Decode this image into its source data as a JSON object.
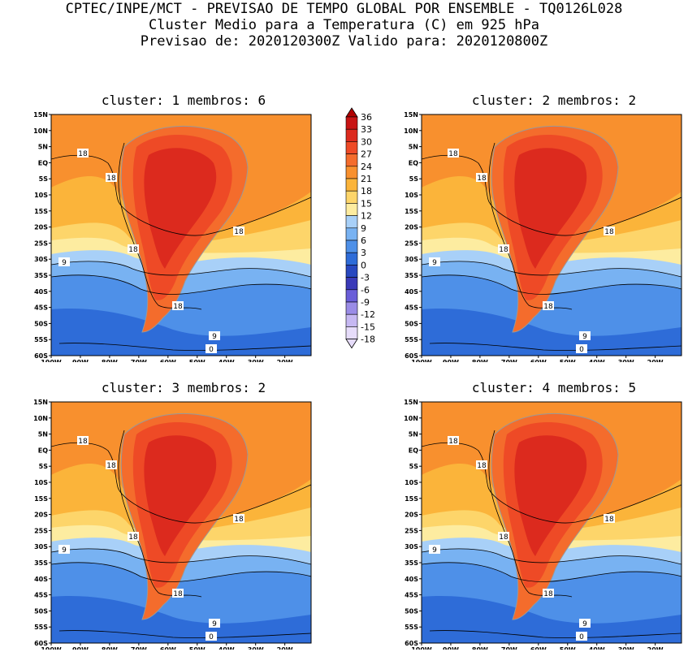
{
  "header": {
    "line1": "CPTEC/INPE/MCT - PREVISAO DE TEMPO GLOBAL POR ENSEMBLE - TQ0126L028",
    "line2": "Cluster Medio para a Temperatura (C) em 925 hPa",
    "line3": "Previsao de: 2020120300Z   Valido para: 2020120800Z"
  },
  "axes": {
    "lat_labels": [
      "15N",
      "10N",
      "5N",
      "EQ",
      "5S",
      "10S",
      "15S",
      "20S",
      "25S",
      "30S",
      "35S",
      "40S",
      "45S",
      "50S",
      "55S",
      "60S"
    ],
    "lon_labels": [
      "100W",
      "90W",
      "80W",
      "70W",
      "60W",
      "50W",
      "40W",
      "30W",
      "20W"
    ]
  },
  "colorbar": {
    "labels": [
      "36",
      "33",
      "30",
      "27",
      "24",
      "21",
      "18",
      "15",
      "12",
      "9",
      "6",
      "3",
      "0",
      "-3",
      "-6",
      "-9",
      "-12",
      "-15",
      "-18"
    ],
    "colors": [
      "#b00000",
      "#c81414",
      "#dc2a1e",
      "#ee4a26",
      "#f46c2c",
      "#f8902e",
      "#fbb43a",
      "#fdd56a",
      "#fdeca0",
      "#a8d0f8",
      "#78b2f2",
      "#4e90e8",
      "#2e6cd8",
      "#2848c0",
      "#3a3ab8",
      "#6a5ed8",
      "#9a8ce6",
      "#c6b8f2",
      "#e6dcfa"
    ]
  },
  "clusters": [
    {
      "title": "cluster: 1   membros: 6",
      "labels": [
        "18",
        "18",
        "18",
        "18",
        "18",
        "9",
        "9",
        "0"
      ]
    },
    {
      "title": "cluster: 2   membros: 2",
      "labels": [
        "18",
        "18",
        "18",
        "18",
        "18",
        "9",
        "9",
        "0"
      ]
    },
    {
      "title": "cluster: 3   membros: 2",
      "labels": [
        "18",
        "18",
        "18",
        "18",
        "18",
        "9",
        "9",
        "0"
      ]
    },
    {
      "title": "cluster: 4   membros: 5",
      "labels": [
        "18",
        "18",
        "18",
        "18",
        "18",
        "9",
        "9",
        "0"
      ]
    }
  ]
}
